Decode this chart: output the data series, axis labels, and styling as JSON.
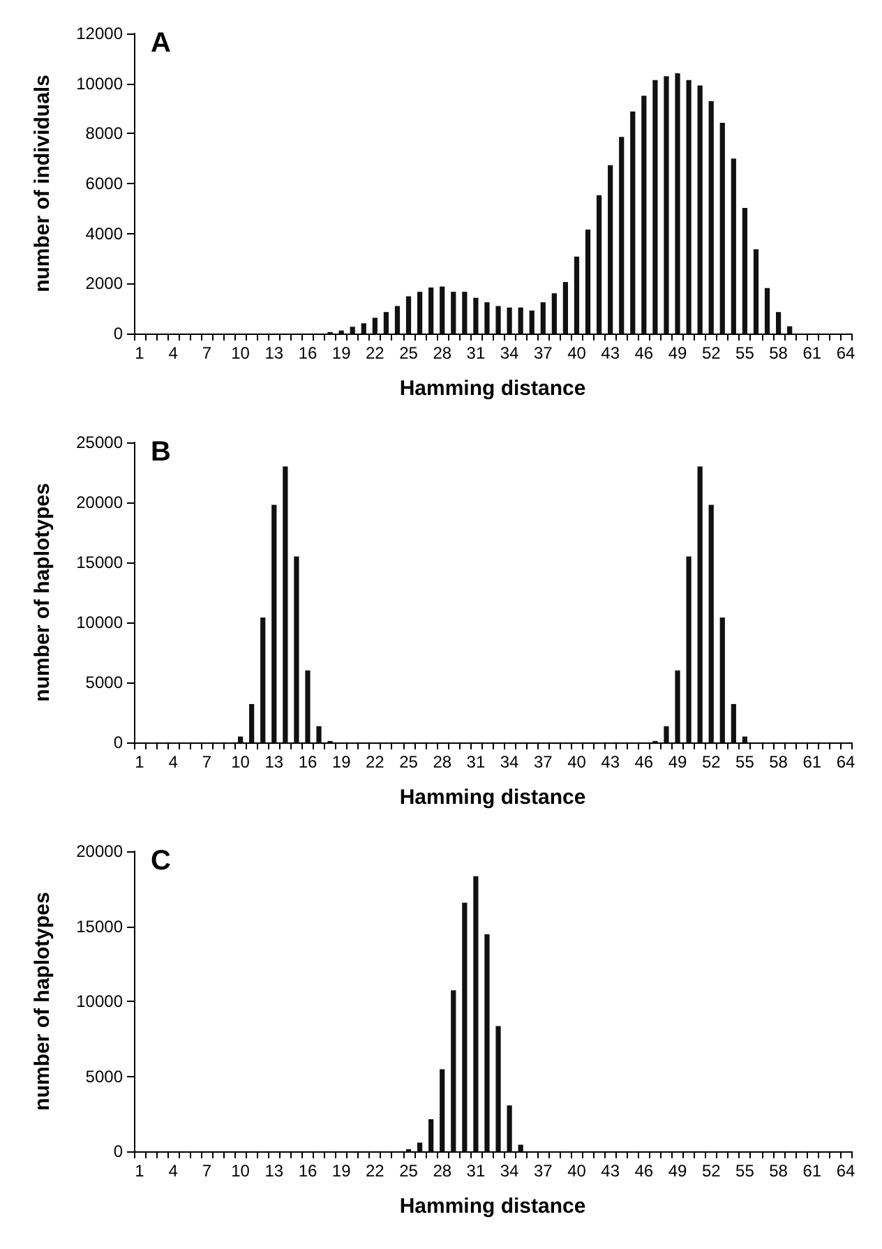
{
  "chart_data": [
    {
      "type": "bar",
      "title": "A",
      "xlabel": "Hamming distance",
      "ylabel": "number of individuals",
      "color": "#111111",
      "ylim": [
        0,
        12000
      ],
      "yticks": [
        0,
        2000,
        4000,
        6000,
        8000,
        10000,
        12000
      ],
      "categories": [
        "1",
        null,
        null,
        "4",
        null,
        null,
        "7",
        null,
        null,
        "10",
        null,
        null,
        "13",
        null,
        null,
        "16",
        null,
        null,
        "19",
        null,
        null,
        "22",
        null,
        null,
        "25",
        null,
        null,
        "28",
        null,
        null,
        "31",
        null,
        null,
        "34",
        null,
        null,
        "37",
        null,
        null,
        "40",
        null,
        null,
        "43",
        null,
        null,
        "46",
        null,
        null,
        "49",
        null,
        null,
        "52",
        null,
        null,
        "55",
        null,
        null,
        "58",
        null,
        null,
        "61",
        null,
        null,
        "64"
      ],
      "values": [
        0,
        0,
        0,
        0,
        0,
        0,
        0,
        0,
        0,
        0,
        0,
        0,
        0,
        0,
        0,
        0,
        0,
        60,
        120,
        270,
        410,
        630,
        860,
        1100,
        1490,
        1670,
        1840,
        1880,
        1670,
        1670,
        1430,
        1250,
        1100,
        1040,
        1040,
        920,
        1250,
        1610,
        2060,
        3080,
        4160,
        5530,
        6730,
        7860,
        8880,
        9510,
        10140,
        10290,
        10410,
        10140,
        9920,
        9290,
        8430,
        7000,
        5020,
        3370,
        1820,
        860,
        290,
        0,
        0,
        0,
        0,
        0
      ]
    },
    {
      "type": "bar",
      "title": "B",
      "xlabel": "Hamming distance",
      "ylabel": "number of haplotypes",
      "color": "#111111",
      "ylim": [
        0,
        25000
      ],
      "yticks": [
        0,
        5000,
        10000,
        15000,
        20000,
        25000
      ],
      "categories": [
        "1",
        null,
        null,
        "4",
        null,
        null,
        "7",
        null,
        null,
        "10",
        null,
        null,
        "13",
        null,
        null,
        "16",
        null,
        null,
        "19",
        null,
        null,
        "22",
        null,
        null,
        "25",
        null,
        null,
        "28",
        null,
        null,
        "31",
        null,
        null,
        "34",
        null,
        null,
        "37",
        null,
        null,
        "40",
        null,
        null,
        "43",
        null,
        null,
        "46",
        null,
        null,
        "49",
        null,
        null,
        "52",
        null,
        null,
        "55",
        null,
        null,
        "58",
        null,
        null,
        "61",
        null,
        null,
        "64"
      ],
      "values": [
        0,
        0,
        0,
        0,
        0,
        0,
        0,
        0,
        0,
        490,
        3200,
        10400,
        19800,
        23000,
        15500,
        6000,
        1350,
        120,
        0,
        0,
        0,
        0,
        0,
        0,
        0,
        0,
        0,
        0,
        0,
        0,
        0,
        0,
        0,
        0,
        0,
        0,
        0,
        0,
        0,
        0,
        0,
        0,
        0,
        0,
        0,
        0,
        120,
        1350,
        6000,
        15500,
        23000,
        19800,
        10400,
        3200,
        490,
        0,
        0,
        0,
        0,
        0,
        0,
        0,
        0,
        0
      ]
    },
    {
      "type": "bar",
      "title": "C",
      "xlabel": "Hamming distance",
      "ylabel": "number of haplotypes",
      "color": "#111111",
      "ylim": [
        0,
        20000
      ],
      "yticks": [
        0,
        5000,
        10000,
        15000,
        20000
      ],
      "categories": [
        "1",
        null,
        null,
        "4",
        null,
        null,
        "7",
        null,
        null,
        "10",
        null,
        null,
        "13",
        null,
        null,
        "16",
        null,
        null,
        "19",
        null,
        null,
        "22",
        null,
        null,
        "25",
        null,
        null,
        "28",
        null,
        null,
        "31",
        null,
        null,
        "34",
        null,
        null,
        "37",
        null,
        null,
        "40",
        null,
        null,
        "43",
        null,
        null,
        "46",
        null,
        null,
        "49",
        null,
        null,
        "52",
        null,
        null,
        "55",
        null,
        null,
        "58",
        null,
        null,
        "61",
        null,
        null,
        "64"
      ],
      "values": [
        0,
        0,
        0,
        0,
        0,
        0,
        0,
        0,
        0,
        0,
        0,
        0,
        0,
        0,
        0,
        0,
        0,
        0,
        0,
        0,
        0,
        0,
        0,
        0,
        140,
        580,
        2140,
        5470,
        10730,
        16570,
        18340,
        14470,
        8350,
        3060,
        440,
        0,
        0,
        0,
        0,
        0,
        0,
        0,
        0,
        0,
        0,
        0,
        0,
        0,
        0,
        0,
        0,
        0,
        0,
        0,
        0,
        0,
        0,
        0,
        0,
        0,
        0,
        0,
        0,
        0
      ]
    }
  ]
}
